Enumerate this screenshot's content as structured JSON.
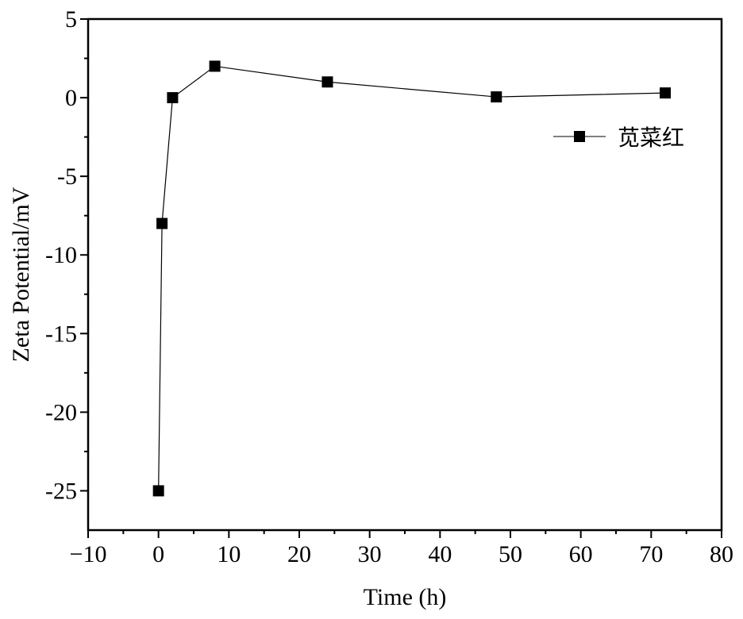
{
  "chart_data": {
    "type": "line",
    "xlabel": "Time (h)",
    "ylabel": "Zeta Potential/mV",
    "xlim": [
      -10,
      80
    ],
    "ylim": [
      -27.5,
      5
    ],
    "x_ticks": [
      -10,
      0,
      10,
      20,
      30,
      40,
      50,
      60,
      70,
      80
    ],
    "x_tick_labels": [
      "−10",
      "0",
      "10",
      "20",
      "30",
      "40",
      "50",
      "60",
      "70",
      "80"
    ],
    "y_ticks": [
      5,
      0,
      -5,
      -10,
      -15,
      -20,
      -25
    ],
    "y_tick_labels": [
      "5",
      "0",
      "-5",
      "-10",
      "-15",
      "-20",
      "-25"
    ],
    "grid": false,
    "legend_position": "top-right",
    "series": [
      {
        "name": "苋菜红",
        "color": "#000000",
        "marker": "square",
        "x": [
          0,
          0.5,
          2,
          8,
          24,
          48,
          72
        ],
        "y": [
          -25,
          -8,
          0,
          2,
          1,
          0.05,
          0.3
        ]
      }
    ]
  }
}
